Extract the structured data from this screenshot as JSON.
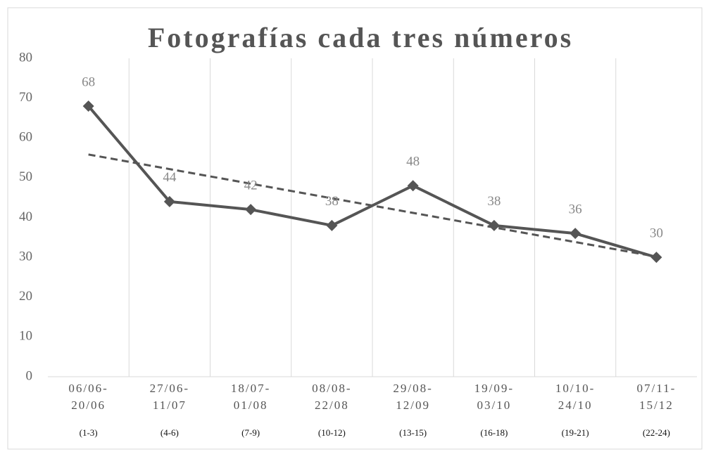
{
  "chart_data": {
    "type": "line",
    "title": "Fotografías cada tres números",
    "categories": [
      [
        "06/06-",
        "20/06"
      ],
      [
        "27/06-",
        "11/07"
      ],
      [
        "18/07-",
        "01/08"
      ],
      [
        "08/08-",
        "22/08"
      ],
      [
        "29/08-",
        "12/09"
      ],
      [
        "19/09-",
        "03/10"
      ],
      [
        "10/10-",
        "24/10"
      ],
      [
        "07/11-",
        "15/12"
      ]
    ],
    "sublabels": [
      "(1-3)",
      "(4-6)",
      "(7-9)",
      "(10-12)",
      "(13-15)",
      "(16-18)",
      "(19-21)",
      "(22-24)"
    ],
    "values": [
      68,
      44,
      42,
      38,
      48,
      38,
      36,
      30
    ],
    "color": "#555555",
    "trendline": "linear",
    "trend_color": "#555555",
    "ylim": [
      0,
      80
    ],
    "yticks": [
      0,
      10,
      20,
      30,
      40,
      50,
      60,
      70,
      80
    ],
    "grid": "x"
  }
}
